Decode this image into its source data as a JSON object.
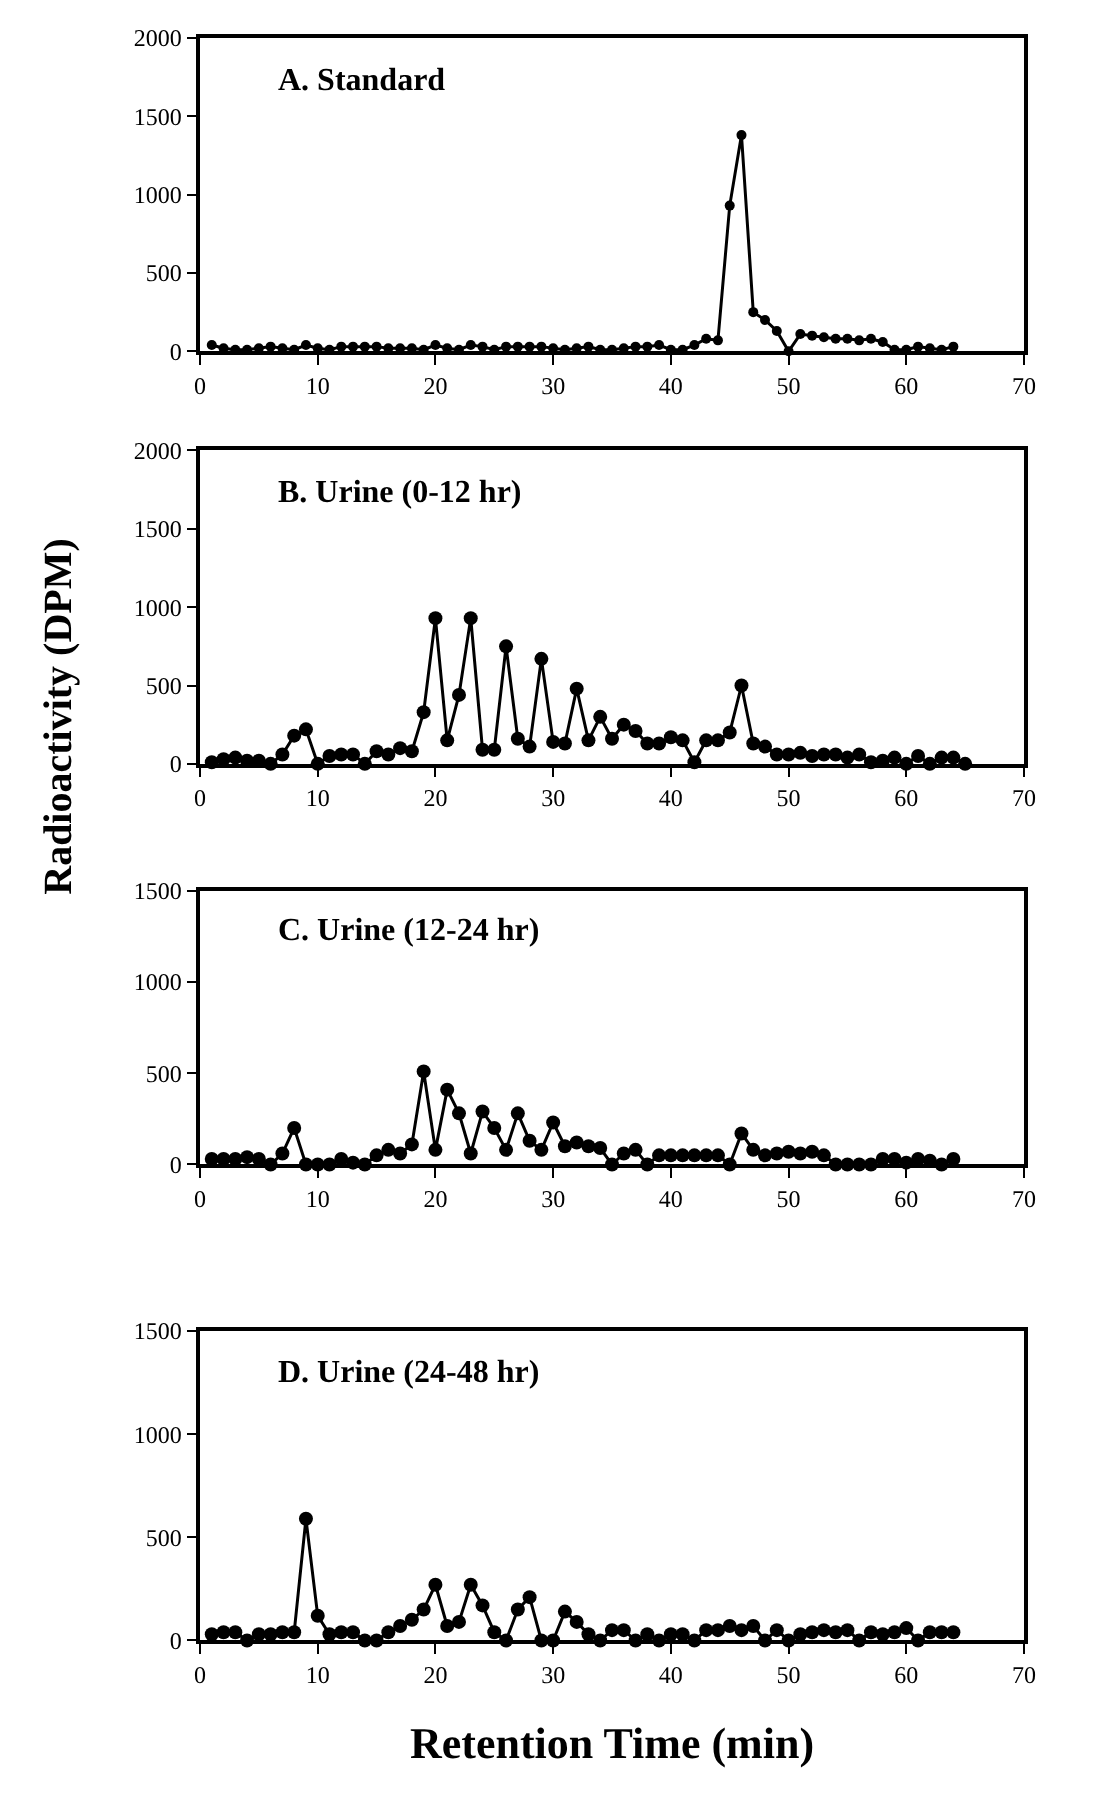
{
  "chart_data": [
    {
      "type": "line",
      "title": "A. Standard",
      "marker": "circle",
      "line_style": "solid",
      "xlim": [
        0,
        70
      ],
      "xticks": [
        0,
        10,
        20,
        30,
        40,
        50,
        60,
        70
      ],
      "ylim": [
        0,
        2000
      ],
      "yticks": [
        0,
        500,
        1000,
        1500,
        2000
      ],
      "x": [
        1,
        2,
        3,
        4,
        5,
        6,
        7,
        8,
        9,
        10,
        11,
        12,
        13,
        14,
        15,
        16,
        17,
        18,
        19,
        20,
        21,
        22,
        23,
        24,
        25,
        26,
        27,
        28,
        29,
        30,
        31,
        32,
        33,
        34,
        35,
        36,
        37,
        38,
        39,
        40,
        41,
        42,
        43,
        44,
        45,
        46,
        47,
        48,
        49,
        50,
        51,
        52,
        53,
        54,
        55,
        56,
        57,
        58,
        59,
        60,
        61,
        62,
        63,
        64
      ],
      "series": [
        {
          "color": "#000000",
          "values": [
            40,
            20,
            10,
            10,
            20,
            30,
            20,
            10,
            40,
            20,
            10,
            30,
            30,
            30,
            30,
            20,
            20,
            20,
            10,
            40,
            20,
            10,
            40,
            30,
            10,
            30,
            30,
            30,
            30,
            20,
            10,
            20,
            30,
            10,
            10,
            20,
            30,
            30,
            40,
            10,
            10,
            40,
            80,
            70,
            930,
            1380,
            250,
            200,
            130,
            0,
            110,
            100,
            90,
            80,
            80,
            70,
            80,
            60,
            10,
            10,
            30,
            20,
            10,
            30
          ]
        }
      ]
    },
    {
      "type": "line",
      "title": "B. Urine (0-12 hr)",
      "ylabel": "Radioactivity (DPM)",
      "marker": "circle",
      "line_style": "solid",
      "xlim": [
        0,
        70
      ],
      "xticks": [
        0,
        10,
        20,
        30,
        40,
        50,
        60,
        70
      ],
      "ylim": [
        0,
        2000
      ],
      "yticks": [
        0,
        500,
        1000,
        1500,
        2000
      ],
      "x": [
        1,
        2,
        3,
        4,
        5,
        6,
        7,
        8,
        9,
        10,
        11,
        12,
        13,
        14,
        15,
        16,
        17,
        18,
        19,
        20,
        21,
        22,
        23,
        24,
        25,
        26,
        27,
        28,
        29,
        30,
        31,
        32,
        33,
        34,
        35,
        36,
        37,
        38,
        39,
        40,
        41,
        42,
        43,
        44,
        45,
        46,
        47,
        48,
        49,
        50,
        51,
        52,
        53,
        54,
        55,
        56,
        57,
        58,
        59,
        60,
        61,
        62,
        63,
        64,
        65
      ],
      "series": [
        {
          "color": "#000000",
          "values": [
            10,
            30,
            40,
            20,
            20,
            0,
            60,
            180,
            220,
            0,
            50,
            60,
            60,
            0,
            80,
            60,
            100,
            80,
            330,
            930,
            150,
            440,
            930,
            90,
            90,
            750,
            160,
            110,
            670,
            140,
            130,
            480,
            150,
            300,
            160,
            250,
            210,
            130,
            130,
            170,
            150,
            10,
            150,
            150,
            200,
            500,
            130,
            110,
            60,
            60,
            70,
            50,
            60,
            60,
            40,
            60,
            10,
            20,
            40,
            0,
            50,
            0,
            40,
            40,
            0
          ]
        }
      ]
    },
    {
      "type": "line",
      "title": "C. Urine (12-24 hr)",
      "marker": "circle",
      "line_style": "solid",
      "xlim": [
        0,
        70
      ],
      "xticks": [
        0,
        10,
        20,
        30,
        40,
        50,
        60,
        70
      ],
      "ylim": [
        0,
        1500
      ],
      "yticks": [
        0,
        500,
        1000,
        1500
      ],
      "x": [
        1,
        2,
        3,
        4,
        5,
        6,
        7,
        8,
        9,
        10,
        11,
        12,
        13,
        14,
        15,
        16,
        17,
        18,
        19,
        20,
        21,
        22,
        23,
        24,
        25,
        26,
        27,
        28,
        29,
        30,
        31,
        32,
        33,
        34,
        35,
        36,
        37,
        38,
        39,
        40,
        41,
        42,
        43,
        44,
        45,
        46,
        47,
        48,
        49,
        50,
        51,
        52,
        53,
        54,
        55,
        56,
        57,
        58,
        59,
        60,
        61,
        62,
        63,
        64
      ],
      "series": [
        {
          "color": "#000000",
          "values": [
            30,
            30,
            30,
            40,
            30,
            0,
            60,
            200,
            0,
            0,
            0,
            30,
            10,
            0,
            50,
            80,
            60,
            110,
            510,
            80,
            410,
            280,
            60,
            290,
            200,
            80,
            280,
            130,
            80,
            230,
            100,
            120,
            100,
            90,
            0,
            60,
            80,
            0,
            50,
            50,
            50,
            50,
            50,
            50,
            0,
            170,
            80,
            50,
            60,
            70,
            60,
            70,
            50,
            0,
            0,
            0,
            0,
            30,
            30,
            10,
            30,
            20,
            0,
            30
          ]
        }
      ]
    },
    {
      "type": "line",
      "title": "D. Urine (24-48 hr)",
      "xlabel": "Retention Time (min)",
      "marker": "circle",
      "line_style": "solid",
      "xlim": [
        0,
        70
      ],
      "xticks": [
        0,
        10,
        20,
        30,
        40,
        50,
        60,
        70
      ],
      "ylim": [
        0,
        1500
      ],
      "yticks": [
        0,
        500,
        1000,
        1500
      ],
      "x": [
        1,
        2,
        3,
        4,
        5,
        6,
        7,
        8,
        9,
        10,
        11,
        12,
        13,
        14,
        15,
        16,
        17,
        18,
        19,
        20,
        21,
        22,
        23,
        24,
        25,
        26,
        27,
        28,
        29,
        30,
        31,
        32,
        33,
        34,
        35,
        36,
        37,
        38,
        39,
        40,
        41,
        42,
        43,
        44,
        45,
        46,
        47,
        48,
        49,
        50,
        51,
        52,
        53,
        54,
        55,
        56,
        57,
        58,
        59,
        60,
        61,
        62,
        63,
        64
      ],
      "series": [
        {
          "color": "#000000",
          "values": [
            30,
            40,
            40,
            0,
            30,
            30,
            40,
            40,
            590,
            120,
            30,
            40,
            40,
            0,
            0,
            40,
            70,
            100,
            150,
            270,
            70,
            90,
            270,
            170,
            40,
            0,
            150,
            210,
            0,
            0,
            140,
            90,
            30,
            0,
            50,
            50,
            0,
            30,
            0,
            30,
            30,
            0,
            50,
            50,
            70,
            50,
            70,
            0,
            50,
            0,
            30,
            40,
            50,
            40,
            50,
            0,
            40,
            30,
            40,
            60,
            0,
            40,
            40,
            40
          ]
        }
      ]
    }
  ]
}
